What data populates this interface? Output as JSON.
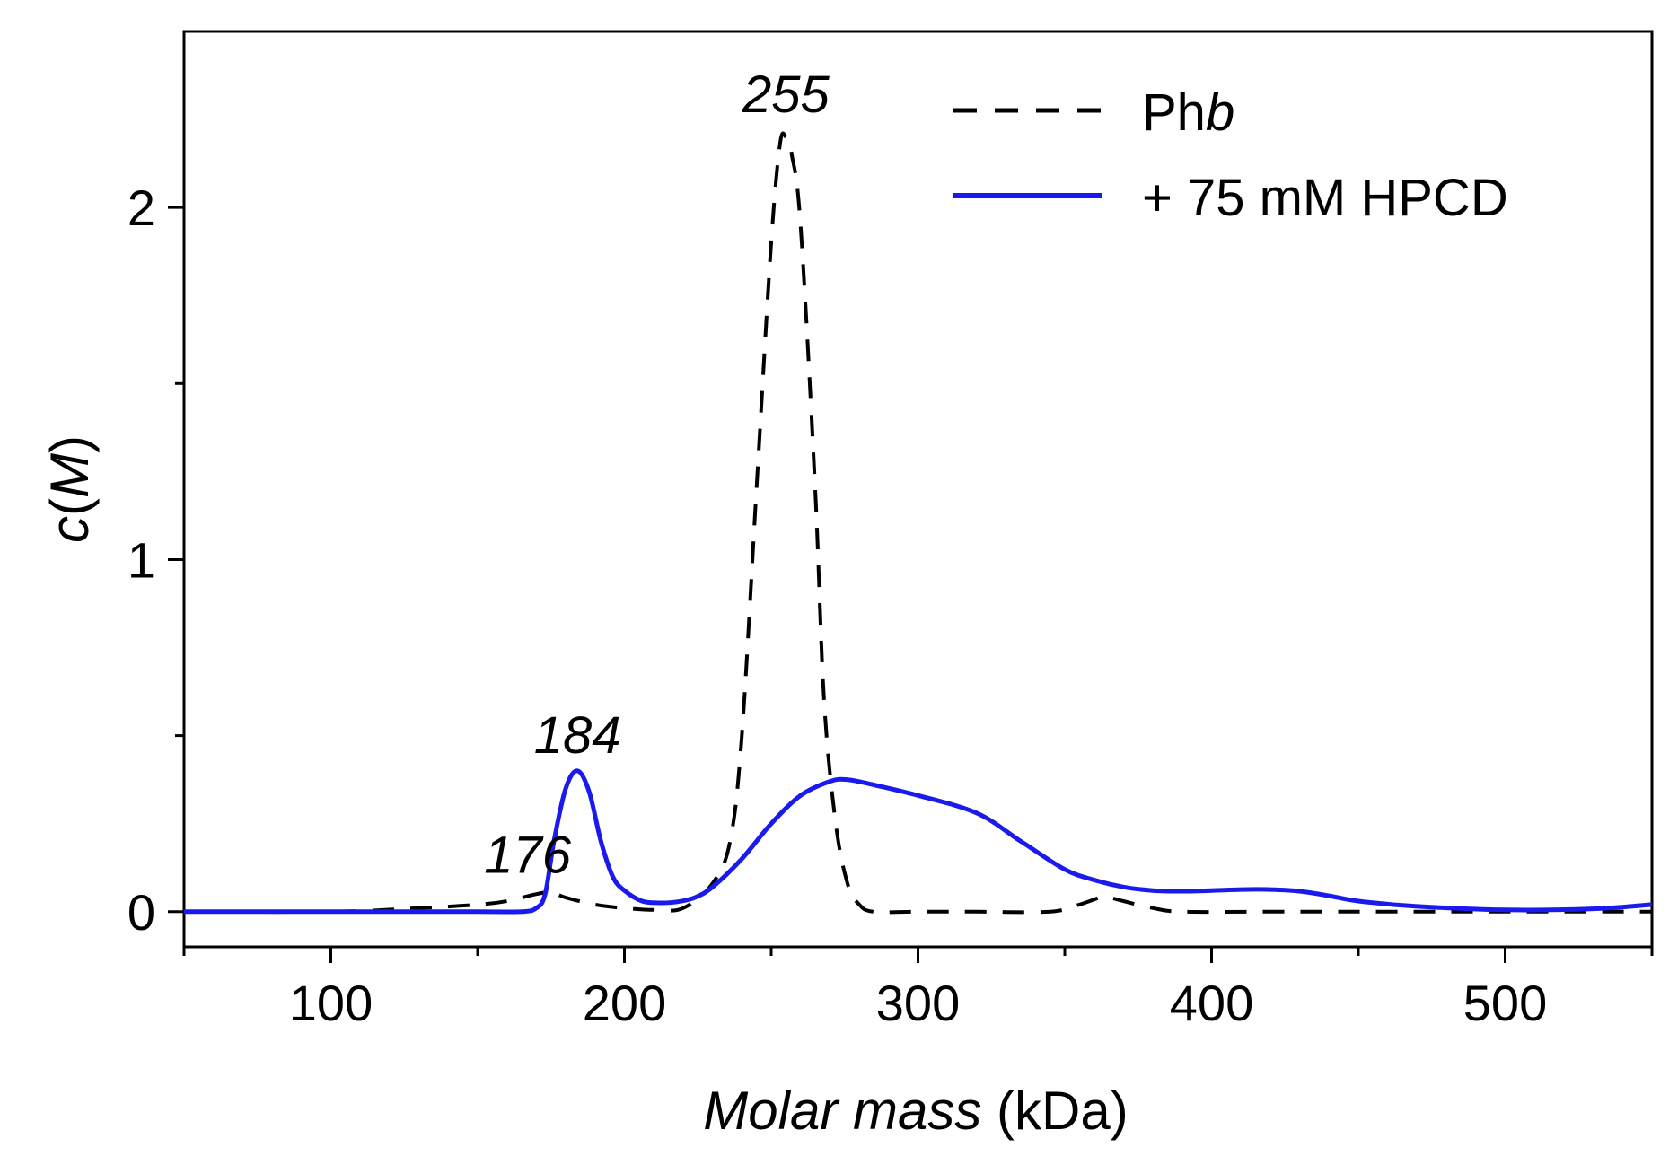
{
  "chart_data": {
    "type": "line",
    "xlabel_italic": "Molar mass",
    "xlabel_unit": " (kDa)",
    "ylabel_prefix": "c(",
    "ylabel_var": "M",
    "ylabel_suffix": ")",
    "xlim": [
      50,
      550
    ],
    "ylim": [
      -0.1,
      2.5
    ],
    "x_ticks": [
      100,
      200,
      300,
      400,
      500
    ],
    "x_minor_ticks": [
      50,
      150,
      250,
      350,
      450,
      550
    ],
    "y_ticks": [
      0,
      1,
      2
    ],
    "y_minor_ticks": [
      0.5,
      1.5
    ],
    "series": [
      {
        "name_main": "Ph",
        "name_italic": "b",
        "style": "dashed",
        "color": "#000000",
        "x": [
          50,
          100,
          130,
          150,
          160,
          170,
          175,
          180,
          190,
          200,
          210,
          220,
          230,
          236,
          240,
          245,
          250,
          253,
          255,
          257,
          260,
          265,
          268,
          272,
          276,
          280,
          285,
          300,
          320,
          345,
          355,
          362,
          365,
          370,
          380,
          390,
          420,
          460,
          500,
          550
        ],
        "y": [
          0,
          0,
          0.01,
          0.02,
          0.03,
          0.05,
          0.055,
          0.04,
          0.02,
          0.01,
          0.005,
          0.01,
          0.08,
          0.2,
          0.5,
          1.2,
          1.9,
          2.18,
          2.2,
          2.15,
          1.95,
          1.2,
          0.6,
          0.25,
          0.08,
          0.02,
          0.0,
          0.0,
          0.0,
          0.0,
          0.02,
          0.04,
          0.04,
          0.03,
          0.01,
          0.0,
          0.0,
          0.0,
          0.0,
          0.0
        ]
      },
      {
        "name_main": "+ 75 mM HPCD",
        "name_italic": "",
        "style": "solid",
        "color": "#1a1aee",
        "x": [
          50,
          100,
          150,
          165,
          170,
          173,
          176,
          180,
          184,
          188,
          192,
          196,
          200,
          206,
          212,
          218,
          224,
          230,
          240,
          250,
          260,
          270,
          276,
          285,
          300,
          320,
          335,
          350,
          360,
          370,
          380,
          390,
          400,
          410,
          420,
          430,
          440,
          450,
          470,
          500,
          530,
          550
        ],
        "y": [
          0,
          0,
          0,
          0.0,
          0.01,
          0.05,
          0.2,
          0.35,
          0.4,
          0.34,
          0.2,
          0.1,
          0.06,
          0.03,
          0.025,
          0.028,
          0.04,
          0.07,
          0.15,
          0.25,
          0.33,
          0.37,
          0.375,
          0.36,
          0.33,
          0.28,
          0.2,
          0.12,
          0.09,
          0.07,
          0.06,
          0.058,
          0.06,
          0.063,
          0.063,
          0.058,
          0.045,
          0.03,
          0.015,
          0.005,
          0.008,
          0.02
        ]
      }
    ],
    "annotations": [
      {
        "text": "255",
        "x": 255,
        "y": 2.27
      },
      {
        "text": "184",
        "x": 184,
        "y": 0.45
      },
      {
        "text": "176",
        "x": 167,
        "y": 0.11
      }
    ]
  }
}
